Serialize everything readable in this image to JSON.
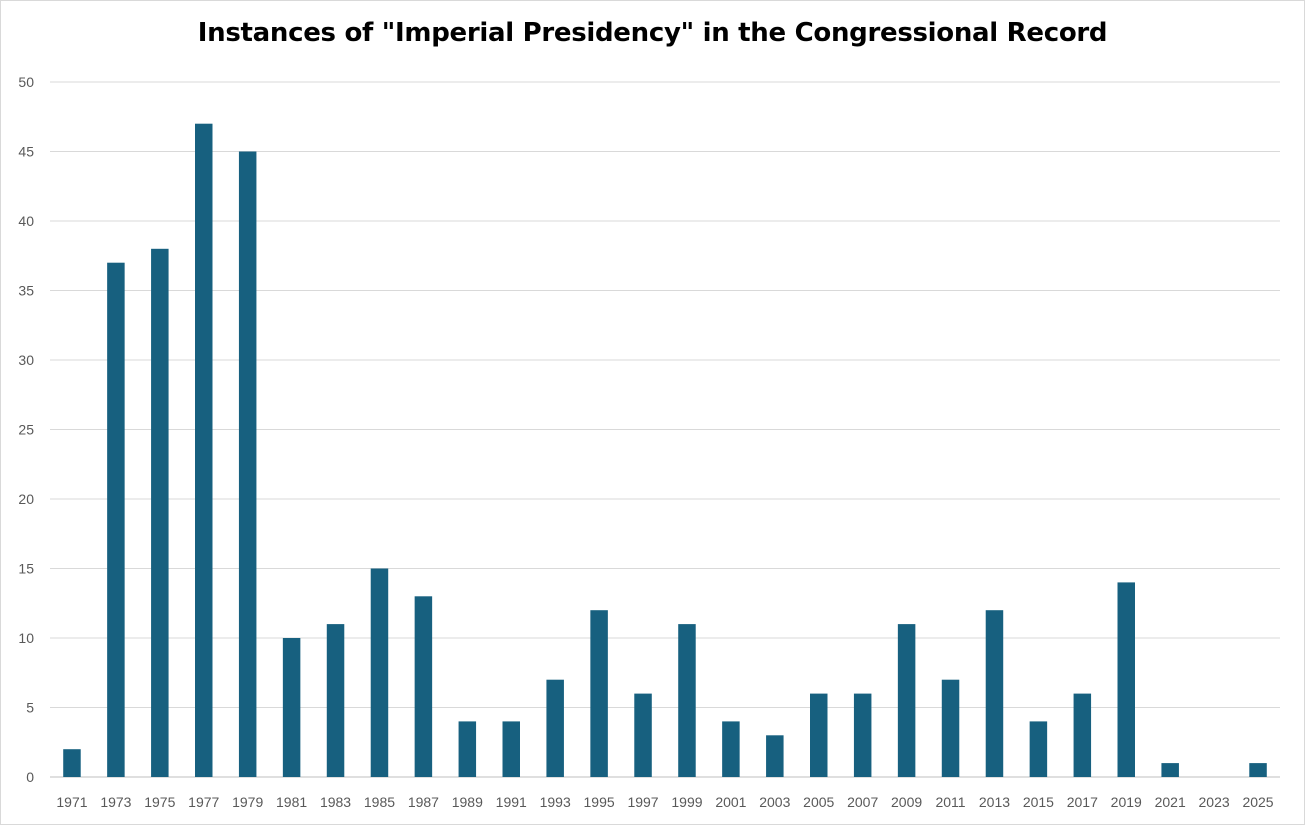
{
  "chart_data": {
    "type": "bar",
    "title": "Instances of \"Imperial Presidency\" in the Congressional Record",
    "xlabel": "",
    "ylabel": "",
    "ylim": [
      0,
      50
    ],
    "yticks": [
      0,
      5,
      10,
      15,
      20,
      25,
      30,
      35,
      40,
      45,
      50
    ],
    "grid": true,
    "legend": "none",
    "bar_color": "#17607f",
    "categories": [
      "1971",
      "1973",
      "1975",
      "1977",
      "1979",
      "1981",
      "1983",
      "1985",
      "1987",
      "1989",
      "1991",
      "1993",
      "1995",
      "1997",
      "1999",
      "2001",
      "2003",
      "2005",
      "2007",
      "2009",
      "2011",
      "2013",
      "2015",
      "2017",
      "2019",
      "2021",
      "2023",
      "2025"
    ],
    "values": [
      2,
      37,
      38,
      47,
      45,
      10,
      11,
      15,
      13,
      4,
      4,
      7,
      12,
      6,
      11,
      4,
      3,
      6,
      6,
      11,
      7,
      12,
      4,
      6,
      14,
      1,
      0,
      1
    ]
  }
}
